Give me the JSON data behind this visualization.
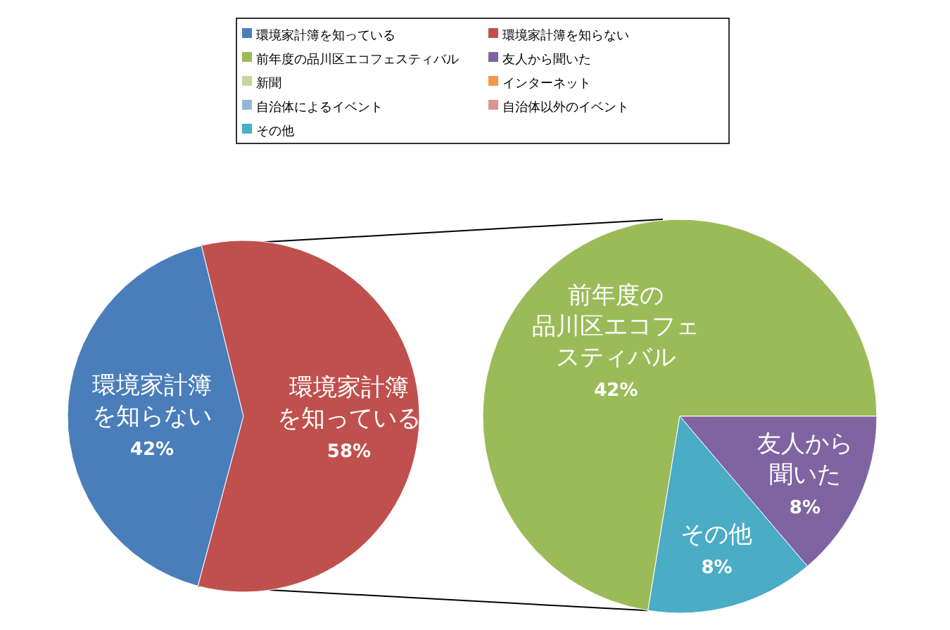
{
  "chart_data": [
    {
      "type": "pie",
      "categories": [
        "環境家計簿を知らない",
        "環境家計簿を知っている"
      ],
      "values": [
        42,
        58
      ],
      "colors": [
        "#4a7ebb",
        "#c0504d"
      ],
      "value_labels": [
        "42%",
        "58%"
      ]
    },
    {
      "type": "pie",
      "categories": [
        "環境家計簿を知っている",
        "環境家計簿を知らない",
        "前年度の品川区エコフェスティバル",
        "友人から聞いた",
        "新聞",
        "インターネット",
        "自治体によるイベント",
        "自治体以外のイベント",
        "その他"
      ],
      "values": [
        null,
        null,
        42,
        8,
        null,
        null,
        null,
        null,
        8
      ],
      "colors": [
        "#4a7ebb",
        "#c0504d",
        "#9bbb59",
        "#8064a2",
        "#c3d69b",
        "#f79646",
        "#95b3d7",
        "#d99694",
        "#4bacc6"
      ],
      "value_labels": [
        null,
        null,
        "42%",
        "8%",
        null,
        null,
        null,
        null,
        "8%"
      ],
      "legend": "top"
    }
  ]
}
